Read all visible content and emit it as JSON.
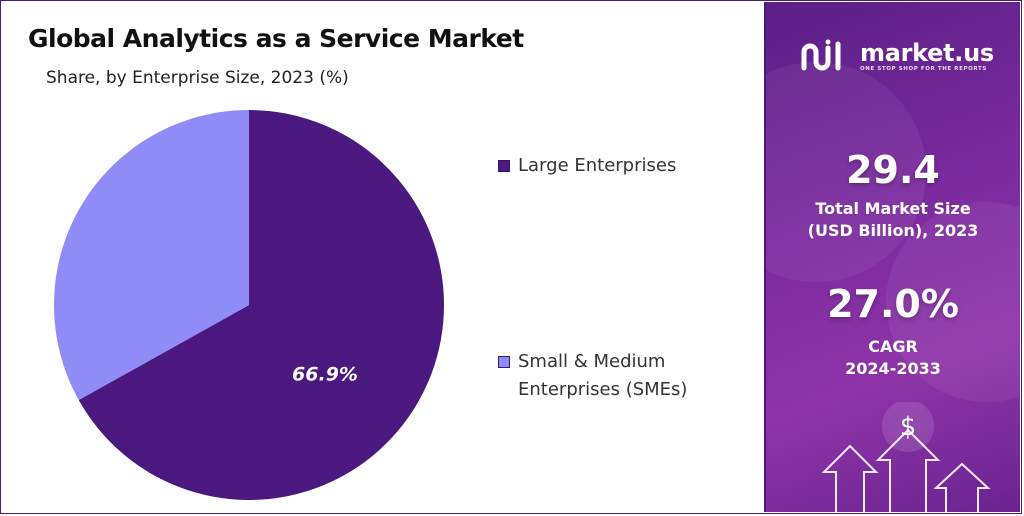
{
  "title": "Global Analytics as a Service Market",
  "subtitle": "Share, by Enterprise Size, 2023 (%)",
  "legend": [
    {
      "label": "Large Enterprises",
      "color": "#4b1880"
    },
    {
      "label": "Small & Medium Enterprises (SMEs)",
      "color": "#8f8cf7"
    }
  ],
  "chart_data": {
    "type": "pie",
    "title": "Global Analytics as a Service Market",
    "subtitle": "Share, by Enterprise Size, 2023 (%)",
    "categories": [
      "Large Enterprises",
      "Small & Medium Enterprises (SMEs)"
    ],
    "values": [
      66.9,
      33.1
    ],
    "colors": [
      "#4b1880",
      "#8f8cf7"
    ],
    "data_labels": [
      "66.9%",
      ""
    ],
    "legend_position": "right"
  },
  "brand": {
    "name": "market.us",
    "tagline": "ONE STOP SHOP FOR THE REPORTS"
  },
  "stats": {
    "market_size_value": "29.4",
    "market_size_label_1": "Total Market Size",
    "market_size_label_2": "(USD Billion), 2023",
    "cagr_value": "27.0%",
    "cagr_label_1": "CAGR",
    "cagr_label_2": "2024-2033"
  },
  "icons": {
    "dollar": "$"
  },
  "colors": {
    "panel_bg": "#7a2a9e",
    "large_enterprises": "#4b1880",
    "smes": "#8f8cf7"
  }
}
